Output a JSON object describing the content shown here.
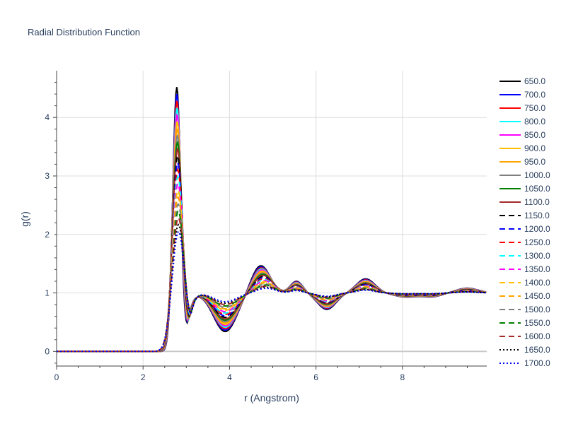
{
  "chart_data": {
    "type": "line",
    "title": "Radial Distribution Function",
    "xlabel": "r (Angstrom)",
    "ylabel": "g(r)",
    "xlim": [
      0,
      9.95
    ],
    "ylim": [
      -0.25,
      4.8
    ],
    "x_ticks": [
      0,
      2,
      4,
      6,
      8
    ],
    "y_ticks": [
      0,
      1,
      2,
      3,
      4
    ],
    "grid": true,
    "legend_position": "right",
    "series": [
      {
        "name": "650.0",
        "color": "#000000",
        "dash": "solid"
      },
      {
        "name": "700.0",
        "color": "#0000ff",
        "dash": "solid"
      },
      {
        "name": "750.0",
        "color": "#ff0000",
        "dash": "solid"
      },
      {
        "name": "800.0",
        "color": "#00ffff",
        "dash": "solid"
      },
      {
        "name": "850.0",
        "color": "#ff00ff",
        "dash": "solid"
      },
      {
        "name": "900.0",
        "color": "#ffc000",
        "dash": "solid"
      },
      {
        "name": "950.0",
        "color": "#ffa500",
        "dash": "solid"
      },
      {
        "name": "1000.0",
        "color": "#808080",
        "dash": "solid"
      },
      {
        "name": "1050.0",
        "color": "#008000",
        "dash": "solid"
      },
      {
        "name": "1100.0",
        "color": "#a52a2a",
        "dash": "solid"
      },
      {
        "name": "1150.0",
        "color": "#000000",
        "dash": "dash"
      },
      {
        "name": "1200.0",
        "color": "#0000ff",
        "dash": "dash"
      },
      {
        "name": "1250.0",
        "color": "#ff0000",
        "dash": "dash"
      },
      {
        "name": "1300.0",
        "color": "#00ffff",
        "dash": "dash"
      },
      {
        "name": "1350.0",
        "color": "#ff00ff",
        "dash": "dash"
      },
      {
        "name": "1400.0",
        "color": "#ffc000",
        "dash": "dash"
      },
      {
        "name": "1450.0",
        "color": "#ffa500",
        "dash": "dash"
      },
      {
        "name": "1500.0",
        "color": "#808080",
        "dash": "dash"
      },
      {
        "name": "1550.0",
        "color": "#008000",
        "dash": "dash"
      },
      {
        "name": "1600.0",
        "color": "#a52a2a",
        "dash": "dash"
      },
      {
        "name": "1650.0",
        "color": "#000000",
        "dash": "dot"
      },
      {
        "name": "1700.0",
        "color": "#0000ff",
        "dash": "dot"
      }
    ],
    "peak_features": {
      "first_peak_r": [
        2.78,
        2.82
      ],
      "first_peak_height": [
        4.52,
        2.05
      ],
      "first_min_r": [
        3.85,
        3.95
      ],
      "first_min_height": [
        0.34,
        0.85
      ],
      "second_peak_r": [
        4.72,
        4.85
      ],
      "second_peak_height": [
        1.47,
        1.08
      ]
    }
  }
}
